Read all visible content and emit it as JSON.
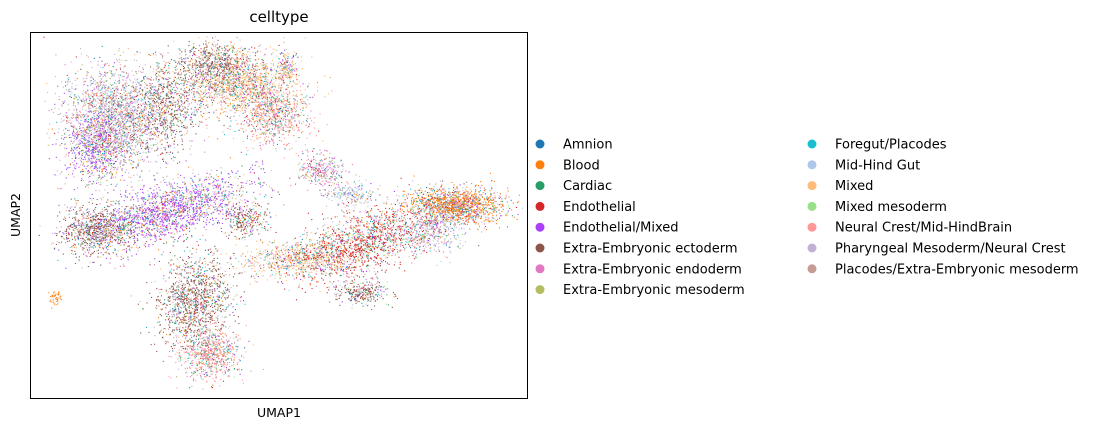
{
  "chart_data": {
    "type": "scatter",
    "title": "celltype",
    "xlabel": "UMAP1",
    "ylabel": "UMAP2",
    "xlim": [
      -6.5,
      13.5
    ],
    "ylim": [
      -6.5,
      8.5
    ],
    "xticks": false,
    "yticks": false,
    "grid": false,
    "legend_position": "right, outside plot, two columns",
    "series": [
      {
        "name": "Amnion",
        "color": "#1f77b4"
      },
      {
        "name": "Blood",
        "color": "#ff7f0e"
      },
      {
        "name": "Cardiac",
        "color": "#279e68"
      },
      {
        "name": "Endothelial",
        "color": "#d62728"
      },
      {
        "name": "Endothelial/Mixed",
        "color": "#aa40fc"
      },
      {
        "name": "Extra-Embryonic ectoderm",
        "color": "#8c564b"
      },
      {
        "name": "Extra-Embryonic endoderm",
        "color": "#e377c2"
      },
      {
        "name": "Extra-Embryonic mesoderm",
        "color": "#b5bd61"
      },
      {
        "name": "Foregut/Placodes",
        "color": "#17becf"
      },
      {
        "name": "Mid-Hind Gut",
        "color": "#aec7e8"
      },
      {
        "name": "Mixed",
        "color": "#ffbb78"
      },
      {
        "name": "Mixed mesoderm",
        "color": "#98df8a"
      },
      {
        "name": "Neural Crest/Mid-HindBrain",
        "color": "#ff9896"
      },
      {
        "name": "Pharyngeal Mesoderm/Neural Crest",
        "color": "#c5b0d5"
      },
      {
        "name": "Placodes/Extra-Embryonic mesoderm",
        "color": "#c49c94"
      }
    ]
  }
}
